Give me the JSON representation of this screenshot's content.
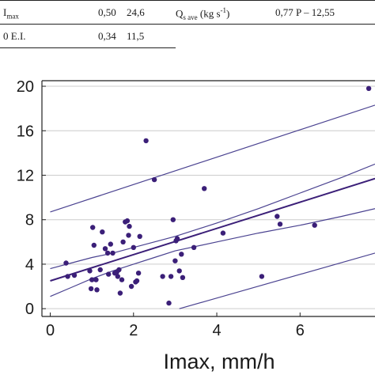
{
  "table_fragment": {
    "row1": {
      "label": "I",
      "label_sub": "max",
      "v1": "0,50",
      "v2": "24,6",
      "q_prefix": "Q",
      "q_sub": "s ave",
      "q_unit": "(kg s",
      "q_sup": "-1",
      "q_close": ")",
      "equation": "0,77 P – 12,55"
    },
    "row2": {
      "label": "0 E.I.",
      "v1": "0,34",
      "v2": "11,5"
    }
  },
  "chart_data": {
    "type": "scatter",
    "xlabel": "Imax, mm/h",
    "ylabel": "",
    "xlim": [
      -0.2,
      7.8
    ],
    "ylim": [
      -0.7,
      20.5
    ],
    "x_ticks": [
      0,
      2,
      4,
      6
    ],
    "y_ticks": [
      0,
      4,
      8,
      12,
      16,
      20
    ],
    "x_tick_labels": [
      "0",
      "2",
      "4",
      "6"
    ],
    "y_tick_labels": [
      "0",
      "4",
      "8",
      "12",
      "16",
      "20"
    ],
    "grid": "horizontal",
    "colors": {
      "points": "#3b1f78",
      "regression": "#3b1f78",
      "bands": "#4a4290",
      "grid": "#cccccc",
      "axes": "#222222"
    },
    "points": [
      {
        "x": 0.38,
        "y": 4.1
      },
      {
        "x": 0.42,
        "y": 2.9
      },
      {
        "x": 0.58,
        "y": 3.0
      },
      {
        "x": 0.95,
        "y": 3.4
      },
      {
        "x": 0.98,
        "y": 1.8
      },
      {
        "x": 1.0,
        "y": 2.6
      },
      {
        "x": 1.02,
        "y": 7.3
      },
      {
        "x": 1.05,
        "y": 5.7
      },
      {
        "x": 1.1,
        "y": 2.6
      },
      {
        "x": 1.12,
        "y": 1.7
      },
      {
        "x": 1.2,
        "y": 3.5
      },
      {
        "x": 1.25,
        "y": 6.9
      },
      {
        "x": 1.32,
        "y": 5.4
      },
      {
        "x": 1.38,
        "y": 5.0
      },
      {
        "x": 1.4,
        "y": 3.1
      },
      {
        "x": 1.45,
        "y": 5.8
      },
      {
        "x": 1.5,
        "y": 5.0
      },
      {
        "x": 1.55,
        "y": 3.2
      },
      {
        "x": 1.6,
        "y": 3.3
      },
      {
        "x": 1.62,
        "y": 2.9
      },
      {
        "x": 1.65,
        "y": 3.5
      },
      {
        "x": 1.68,
        "y": 1.4
      },
      {
        "x": 1.72,
        "y": 2.6
      },
      {
        "x": 1.75,
        "y": 6.0
      },
      {
        "x": 1.8,
        "y": 7.8
      },
      {
        "x": 1.85,
        "y": 7.9
      },
      {
        "x": 1.88,
        "y": 6.6
      },
      {
        "x": 1.9,
        "y": 7.4
      },
      {
        "x": 1.95,
        "y": 2.0
      },
      {
        "x": 2.0,
        "y": 5.5
      },
      {
        "x": 2.05,
        "y": 2.4
      },
      {
        "x": 2.08,
        "y": 2.5
      },
      {
        "x": 2.12,
        "y": 3.2
      },
      {
        "x": 2.15,
        "y": 6.5
      },
      {
        "x": 2.3,
        "y": 15.1
      },
      {
        "x": 2.5,
        "y": 11.6
      },
      {
        "x": 2.7,
        "y": 2.9
      },
      {
        "x": 2.85,
        "y": 0.5
      },
      {
        "x": 2.9,
        "y": 2.9
      },
      {
        "x": 2.95,
        "y": 8.0
      },
      {
        "x": 3.0,
        "y": 4.3
      },
      {
        "x": 3.02,
        "y": 6.1
      },
      {
        "x": 3.05,
        "y": 6.3
      },
      {
        "x": 3.1,
        "y": 3.4
      },
      {
        "x": 3.15,
        "y": 4.9
      },
      {
        "x": 3.18,
        "y": 2.8
      },
      {
        "x": 3.45,
        "y": 5.5
      },
      {
        "x": 3.7,
        "y": 10.8
      },
      {
        "x": 4.15,
        "y": 6.8
      },
      {
        "x": 5.08,
        "y": 2.9
      },
      {
        "x": 5.45,
        "y": 8.3
      },
      {
        "x": 5.52,
        "y": 7.6
      },
      {
        "x": 6.35,
        "y": 7.5
      },
      {
        "x": 7.65,
        "y": 19.8
      }
    ],
    "lines": [
      {
        "role": "regression",
        "x": [
          0,
          7.8
        ],
        "y": [
          2.5,
          11.7
        ]
      },
      {
        "role": "upper-confidence",
        "x": [
          0,
          0.5,
          1,
          1.5,
          2,
          2.5,
          3,
          4,
          5,
          6,
          7,
          7.8
        ],
        "y": [
          3.6,
          4.1,
          4.6,
          5.0,
          5.5,
          6.0,
          6.5,
          7.7,
          9.0,
          10.4,
          11.8,
          13.0
        ]
      },
      {
        "role": "lower-confidence",
        "x": [
          0,
          0.5,
          1,
          1.5,
          2,
          2.5,
          3,
          4,
          5,
          6,
          7,
          7.8
        ],
        "y": [
          1.1,
          1.9,
          2.7,
          3.4,
          4.0,
          4.6,
          5.2,
          6.0,
          6.8,
          7.5,
          8.3,
          9.0
        ]
      },
      {
        "role": "upper-prediction",
        "x": [
          0,
          7.8
        ],
        "y": [
          8.7,
          18.3
        ]
      },
      {
        "role": "lower-prediction",
        "x": [
          3.1,
          7.8
        ],
        "y": [
          0.0,
          5.0
        ]
      }
    ]
  }
}
